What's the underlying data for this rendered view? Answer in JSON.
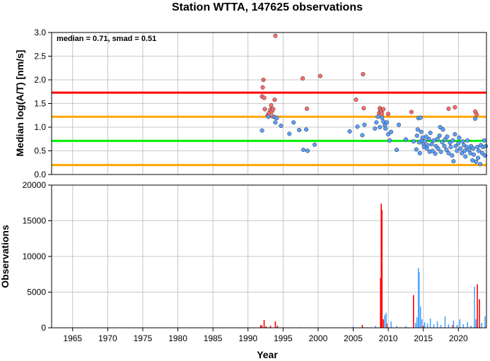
{
  "chart_data": [
    {
      "type": "scatter",
      "title": "Station WTTA, 147625 observations",
      "ylabel": "Median log(A/T) [nm/s]",
      "annotation": "median = 0.71, smad = 0.51",
      "xlim": [
        1962,
        2024
      ],
      "ylim": [
        0,
        3
      ],
      "yticks": [
        "0.0",
        "0.5",
        "1.0",
        "1.5",
        "2.0",
        "2.5",
        "3.0"
      ],
      "grid": true,
      "reference_lines": [
        {
          "y": 1.73,
          "color": "#ff0000"
        },
        {
          "y": 1.22,
          "color": "#ffa500"
        },
        {
          "y": 0.71,
          "color": "#00ee00"
        },
        {
          "y": 0.2,
          "color": "#ffa500"
        }
      ],
      "outlier_color": "#ff6b6b",
      "normal_color": "#5aa0ff",
      "points": [
        [
          1992.0,
          1.65
        ],
        [
          1992.1,
          1.84
        ],
        [
          1992.2,
          2.0
        ],
        [
          1992.3,
          1.62
        ],
        [
          1992.4,
          1.38
        ],
        [
          1992.8,
          1.25
        ],
        [
          1993.0,
          1.3
        ],
        [
          1993.2,
          1.37
        ],
        [
          1993.3,
          1.46
        ],
        [
          1993.4,
          1.33
        ],
        [
          1993.6,
          1.38
        ],
        [
          1993.8,
          1.58
        ],
        [
          1993.9,
          2.93
        ],
        [
          1997.8,
          2.03
        ],
        [
          1998.4,
          1.39
        ],
        [
          2000.3,
          2.08
        ],
        [
          2005.4,
          1.58
        ],
        [
          2006.4,
          2.12
        ],
        [
          2006.5,
          1.4
        ],
        [
          2008.7,
          1.3
        ],
        [
          2008.8,
          1.4
        ],
        [
          2008.9,
          1.36
        ],
        [
          2009.0,
          1.32
        ],
        [
          2009.1,
          1.28
        ],
        [
          2009.3,
          1.38
        ],
        [
          2010.0,
          1.28
        ],
        [
          2013.3,
          1.32
        ],
        [
          2018.6,
          1.39
        ],
        [
          2019.5,
          1.42
        ],
        [
          2022.4,
          1.33
        ],
        [
          2022.6,
          1.27
        ],
        [
          1992.0,
          0.93
        ],
        [
          1992.9,
          1.22
        ],
        [
          1993.5,
          1.23
        ],
        [
          1993.8,
          1.21
        ],
        [
          1993.9,
          1.1
        ],
        [
          1994.1,
          1.19
        ],
        [
          1994.7,
          1.03
        ],
        [
          1995.9,
          0.86
        ],
        [
          1996.5,
          1.1
        ],
        [
          1997.3,
          0.94
        ],
        [
          1997.9,
          0.52
        ],
        [
          1998.3,
          0.95
        ],
        [
          1998.5,
          0.5
        ],
        [
          1999.5,
          0.63
        ],
        [
          2004.5,
          0.91
        ],
        [
          2005.6,
          1.01
        ],
        [
          2006.3,
          0.83
        ],
        [
          2006.6,
          1.05
        ],
        [
          2008.1,
          0.97
        ],
        [
          2008.3,
          1.1
        ],
        [
          2008.5,
          1.22
        ],
        [
          2008.8,
          1.0
        ],
        [
          2009.1,
          1.2
        ],
        [
          2009.3,
          1.12
        ],
        [
          2009.5,
          1.04
        ],
        [
          2009.6,
          0.97
        ],
        [
          2009.8,
          1.1
        ],
        [
          2010.0,
          0.85
        ],
        [
          2010.2,
          0.72
        ],
        [
          2010.4,
          0.9
        ],
        [
          2011.2,
          0.52
        ],
        [
          2011.5,
          1.05
        ],
        [
          2012.5,
          0.74
        ],
        [
          2013.6,
          0.7
        ],
        [
          2014.0,
          0.53
        ],
        [
          2014.1,
          0.82
        ],
        [
          2014.2,
          0.95
        ],
        [
          2014.3,
          1.19
        ],
        [
          2014.4,
          0.68
        ],
        [
          2014.5,
          0.45
        ],
        [
          2014.6,
          1.2
        ],
        [
          2014.7,
          0.9
        ],
        [
          2014.8,
          0.72
        ],
        [
          2014.9,
          0.78
        ],
        [
          2015.0,
          0.65
        ],
        [
          2015.1,
          0.58
        ],
        [
          2015.2,
          0.7
        ],
        [
          2015.4,
          0.8
        ],
        [
          2015.5,
          0.55
        ],
        [
          2015.6,
          0.62
        ],
        [
          2015.8,
          0.75
        ],
        [
          2015.9,
          0.48
        ],
        [
          2016.0,
          0.88
        ],
        [
          2016.2,
          0.64
        ],
        [
          2016.3,
          0.5
        ],
        [
          2016.5,
          0.72
        ],
        [
          2016.7,
          0.44
        ],
        [
          2016.8,
          0.6
        ],
        [
          2017.0,
          0.75
        ],
        [
          2017.1,
          0.55
        ],
        [
          2017.3,
          0.82
        ],
        [
          2017.4,
          1.0
        ],
        [
          2017.5,
          0.48
        ],
        [
          2017.7,
          0.68
        ],
        [
          2017.8,
          0.95
        ],
        [
          2018.0,
          0.6
        ],
        [
          2018.1,
          0.74
        ],
        [
          2018.3,
          0.52
        ],
        [
          2018.4,
          0.8
        ],
        [
          2018.6,
          0.45
        ],
        [
          2018.8,
          0.67
        ],
        [
          2018.9,
          0.58
        ],
        [
          2019.1,
          0.4
        ],
        [
          2019.2,
          0.72
        ],
        [
          2019.3,
          0.28
        ],
        [
          2019.5,
          0.85
        ],
        [
          2019.6,
          0.6
        ],
        [
          2019.8,
          0.5
        ],
        [
          2020.0,
          0.66
        ],
        [
          2020.1,
          0.78
        ],
        [
          2020.3,
          0.55
        ],
        [
          2020.5,
          0.45
        ],
        [
          2020.6,
          0.7
        ],
        [
          2020.8,
          0.62
        ],
        [
          2020.9,
          0.5
        ],
        [
          2021.0,
          0.38
        ],
        [
          2021.2,
          0.58
        ],
        [
          2021.3,
          0.72
        ],
        [
          2021.5,
          0.52
        ],
        [
          2021.7,
          0.45
        ],
        [
          2021.8,
          0.6
        ],
        [
          2022.0,
          0.3
        ],
        [
          2022.1,
          0.55
        ],
        [
          2022.2,
          0.42
        ],
        [
          2022.4,
          1.18
        ],
        [
          2022.5,
          0.27
        ],
        [
          2022.7,
          0.58
        ],
        [
          2022.8,
          0.35
        ],
        [
          2022.9,
          0.5
        ],
        [
          2023.1,
          0.22
        ],
        [
          2023.2,
          0.62
        ],
        [
          2023.4,
          0.45
        ],
        [
          2023.5,
          0.58
        ],
        [
          2023.7,
          0.72
        ],
        [
          2023.8,
          0.4
        ],
        [
          2023.9,
          0.6
        ]
      ]
    },
    {
      "type": "bar",
      "xlabel": "Year",
      "ylabel": "Observations",
      "xlim": [
        1962,
        2024
      ],
      "ylim": [
        0,
        20000
      ],
      "yticks": [
        "0",
        "5000",
        "10000",
        "15000",
        "20000"
      ],
      "xticks": [
        "1965",
        "1970",
        "1975",
        "1980",
        "1985",
        "1990",
        "1995",
        "2000",
        "2005",
        "2010",
        "2015",
        "2020"
      ],
      "grid": true,
      "series": [
        {
          "color": "#ff0000",
          "values": [
            [
              1991.8,
              400
            ],
            [
              1992.0,
              300
            ],
            [
              1992.3,
              1100
            ],
            [
              1992.6,
              200
            ],
            [
              1993.2,
              300
            ],
            [
              1993.9,
              900
            ],
            [
              1994.2,
              300
            ],
            [
              2006.3,
              400
            ],
            [
              2008.9,
              7000
            ],
            [
              2009.0,
              17400
            ],
            [
              2009.1,
              16500
            ],
            [
              2009.3,
              1200
            ],
            [
              2009.8,
              600
            ],
            [
              2013.6,
              4600
            ],
            [
              2015.0,
              300
            ],
            [
              2019.2,
              400
            ],
            [
              2022.7,
              6100
            ],
            [
              2023.0,
              4000
            ]
          ]
        },
        {
          "color": "#4da6ff",
          "values": [
            [
              1992.5,
              150
            ],
            [
              1994.0,
              100
            ],
            [
              1997.5,
              80
            ],
            [
              2005.0,
              150
            ],
            [
              2008.2,
              300
            ],
            [
              2009.5,
              1800
            ],
            [
              2009.7,
              2100
            ],
            [
              2010.4,
              900
            ],
            [
              2011.2,
              250
            ],
            [
              2012.5,
              250
            ],
            [
              2013.9,
              700
            ],
            [
              2014.1,
              1500
            ],
            [
              2014.3,
              8400
            ],
            [
              2014.4,
              7800
            ],
            [
              2014.6,
              3000
            ],
            [
              2014.8,
              1200
            ],
            [
              2015.2,
              800
            ],
            [
              2015.6,
              600
            ],
            [
              2016.0,
              1300
            ],
            [
              2016.5,
              500
            ],
            [
              2017.0,
              900
            ],
            [
              2017.5,
              400
            ],
            [
              2018.1,
              1600
            ],
            [
              2018.6,
              500
            ],
            [
              2019.3,
              1000
            ],
            [
              2019.8,
              400
            ],
            [
              2020.2,
              1200
            ],
            [
              2020.7,
              500
            ],
            [
              2021.3,
              800
            ],
            [
              2021.8,
              300
            ],
            [
              2022.3,
              5800
            ],
            [
              2022.5,
              1200
            ],
            [
              2023.3,
              700
            ],
            [
              2023.8,
              1600
            ]
          ]
        }
      ]
    }
  ]
}
